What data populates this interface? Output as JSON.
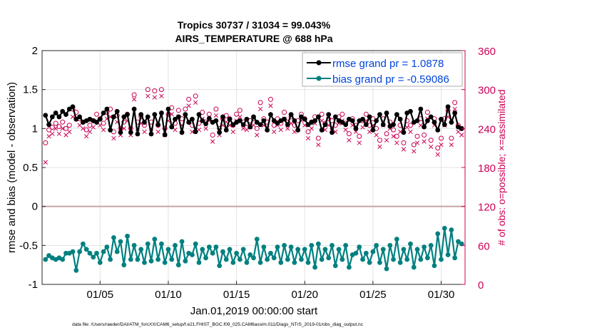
{
  "chart_data": {
    "type": "line",
    "title": "Tropics 30737 / 31034 = 99.043%",
    "subtitle": "AIRS_TEMPERATURE @ 688 hPa",
    "xlabel": "Jan.01,2019 00:00:00 start",
    "ylabel": "rmse and bias (model - observation)",
    "ylabel_right": "# of obs: o=possible; ×=assimilated",
    "footer": "data file: /Users/raeder/DAI/ATM_forcXX/CAM6_setup/f.e21.FHIST_BGC.f09_025.CAM6assim.011/Diags_NTrS_2019-01/obs_diag_output.nc",
    "xlim": [
      0.75,
      31.75
    ],
    "ylim": [
      -1,
      2
    ],
    "ylim_right": [
      0,
      360
    ],
    "x_ticks": [
      5,
      10,
      15,
      20,
      25,
      30
    ],
    "x_tick_labels": [
      "01/05",
      "01/10",
      "01/15",
      "01/20",
      "01/25",
      "01/30"
    ],
    "y_ticks": [
      -1,
      -0.5,
      0,
      0.5,
      1,
      1.5,
      2
    ],
    "y_tick_labels": [
      "-1",
      "-0.5",
      "0",
      "0.5",
      "1",
      "1.5",
      "2"
    ],
    "y_right_ticks": [
      0,
      60,
      120,
      180,
      240,
      300,
      360
    ],
    "y_right_tick_labels": [
      "0",
      "60",
      "120",
      "180",
      "240",
      "300",
      "360"
    ],
    "grid": true,
    "legend_position": "top-right",
    "colors": {
      "rmse": "#000000",
      "bias": "#008080",
      "obs": "#cc0055",
      "zero_line": "#c8a4a4",
      "grid": "#e3e3e3",
      "legend_text": "#0044dd"
    },
    "x": [
      1.0,
      1.25,
      1.5,
      1.75,
      2.0,
      2.25,
      2.5,
      2.75,
      3.0,
      3.25,
      3.5,
      3.75,
      4.0,
      4.25,
      4.5,
      4.75,
      5.0,
      5.25,
      5.5,
      5.75,
      6.0,
      6.25,
      6.5,
      6.75,
      7.0,
      7.25,
      7.5,
      7.75,
      8.0,
      8.25,
      8.5,
      8.75,
      9.0,
      9.25,
      9.5,
      9.75,
      10.0,
      10.25,
      10.5,
      10.75,
      11.0,
      11.25,
      11.5,
      11.75,
      12.0,
      12.25,
      12.5,
      12.75,
      13.0,
      13.25,
      13.5,
      13.75,
      14.0,
      14.25,
      14.5,
      14.75,
      15.0,
      15.25,
      15.5,
      15.75,
      16.0,
      16.25,
      16.5,
      16.75,
      17.0,
      17.25,
      17.5,
      17.75,
      18.0,
      18.25,
      18.5,
      18.75,
      19.0,
      19.25,
      19.5,
      19.75,
      20.0,
      20.25,
      20.5,
      20.75,
      21.0,
      21.25,
      21.5,
      21.75,
      22.0,
      22.25,
      22.5,
      22.75,
      23.0,
      23.25,
      23.5,
      23.75,
      24.0,
      24.25,
      24.5,
      24.75,
      25.0,
      25.25,
      25.5,
      25.75,
      26.0,
      26.25,
      26.5,
      26.75,
      27.0,
      27.25,
      27.5,
      27.75,
      28.0,
      28.25,
      28.5,
      28.75,
      29.0,
      29.25,
      29.5,
      29.75,
      30.0,
      30.25,
      30.5,
      30.75,
      31.0,
      31.25,
      31.5
    ],
    "series": [
      {
        "name": "rmse grand pr = 1.0878",
        "values": [
          1.17,
          1.05,
          1.15,
          1.2,
          1.15,
          1.22,
          1.18,
          1.25,
          1.28,
          1.12,
          1.15,
          1.08,
          1.1,
          1.12,
          1.1,
          1.08,
          1.12,
          1.2,
          1.25,
          0.98,
          1.15,
          1.22,
          0.95,
          1.15,
          1.18,
          0.95,
          1.25,
          0.93,
          1.18,
          1.08,
          1.15,
          0.93,
          1.18,
          1.05,
          1.2,
          0.92,
          1.25,
          1.02,
          1.12,
          1.15,
          0.95,
          1.18,
          1.08,
          1.12,
          0.96,
          1.18,
          1.1,
          1.06,
          1.13,
          1.08,
          1.1,
          0.95,
          1.15,
          0.98,
          1.12,
          1.05,
          1.08,
          1.1,
          1.05,
          1.12,
          1.02,
          1.15,
          1.08,
          1.05,
          1.1,
          0.98,
          1.18,
          1.1,
          1.07,
          1.1,
          1.12,
          1.05,
          1.18,
          1.1,
          0.98,
          1.15,
          1.12,
          1.05,
          1.08,
          1.1,
          1.15,
          0.98,
          1.05,
          1.18,
          0.95,
          1.15,
          1.1,
          1.08,
          1.05,
          1.12,
          1.1,
          1.0,
          1.1,
          1.12,
          1.05,
          1.15,
          0.98,
          1.1,
          1.18,
          1.05,
          1.2,
          1.03,
          1.05,
          1.18,
          1.12,
          0.95,
          1.2,
          1.22,
          1.08,
          1.1,
          1.25,
          1.02,
          1.1,
          1.15,
          1.08,
          0.98,
          1.12,
          1.05,
          1.28,
          1.08,
          1.2,
          1.02,
          1.0
        ]
      },
      {
        "name": "bias grand pr = -0.59086",
        "values": [
          -0.68,
          -0.63,
          -0.66,
          -0.68,
          -0.66,
          -0.68,
          -0.6,
          -0.6,
          -0.58,
          -0.82,
          -0.58,
          -0.48,
          -0.55,
          -0.6,
          -0.65,
          -0.6,
          -0.72,
          -0.58,
          -0.52,
          -0.68,
          -0.4,
          -0.58,
          -0.45,
          -0.75,
          -0.38,
          -0.68,
          -0.5,
          -0.68,
          -0.55,
          -0.72,
          -0.48,
          -0.7,
          -0.42,
          -0.68,
          -0.48,
          -0.72,
          -0.55,
          -0.68,
          -0.5,
          -0.75,
          -0.45,
          -0.7,
          -0.6,
          -0.62,
          -0.48,
          -0.72,
          -0.55,
          -0.66,
          -0.52,
          -0.6,
          -0.52,
          -0.76,
          -0.58,
          -0.68,
          -0.55,
          -0.72,
          -0.6,
          -0.68,
          -0.55,
          -0.72,
          -0.62,
          -0.66,
          -0.42,
          -0.72,
          -0.52,
          -0.68,
          -0.6,
          -0.66,
          -0.52,
          -0.72,
          -0.5,
          -0.68,
          -0.52,
          -0.72,
          -0.55,
          -0.68,
          -0.55,
          -0.72,
          -0.5,
          -0.78,
          -0.48,
          -0.68,
          -0.55,
          -0.66,
          -0.5,
          -0.76,
          -0.55,
          -0.68,
          -0.5,
          -0.78,
          -0.62,
          -0.6,
          -0.52,
          -0.68,
          -0.6,
          -0.72,
          -0.58,
          -0.5,
          -0.72,
          -0.55,
          -0.8,
          -0.5,
          -0.68,
          -0.42,
          -0.72,
          -0.55,
          -0.68,
          -0.48,
          -0.78,
          -0.55,
          -0.68,
          -0.52,
          -0.66,
          -0.5,
          -0.76,
          -0.35,
          -0.68,
          -0.28,
          -0.62,
          -0.3,
          -0.66,
          -0.45,
          -0.48
        ]
      }
    ],
    "obs_possible": [
      218,
      238,
      242,
      248,
      243,
      250,
      240,
      245,
      270,
      265,
      255,
      250,
      238,
      245,
      252,
      262,
      255,
      248,
      265,
      270,
      235,
      260,
      240,
      250,
      262,
      240,
      292,
      250,
      258,
      245,
      300,
      250,
      298,
      245,
      300,
      240,
      262,
      272,
      248,
      268,
      255,
      270,
      285,
      245,
      290,
      248,
      265,
      250,
      262,
      230,
      270,
      240,
      255,
      260,
      255,
      245,
      262,
      268,
      250,
      248,
      252,
      255,
      240,
      280,
      255,
      250,
      285,
      245,
      255,
      248,
      265,
      250,
      258,
      245,
      252,
      262,
      255,
      235,
      250,
      258,
      225,
      262,
      248,
      255,
      252,
      245,
      258,
      262,
      248,
      232,
      255,
      245,
      228,
      252,
      262,
      245,
      255,
      240,
      222,
      255,
      232,
      250,
      238,
      228,
      245,
      218,
      252,
      245,
      215,
      228,
      255,
      230,
      265,
      222,
      255,
      210,
      225,
      255,
      268,
      225,
      280,
      245,
      240
    ],
    "obs_assimilated": [
      188,
      228,
      232,
      240,
      232,
      240,
      230,
      235,
      258,
      255,
      245,
      240,
      228,
      235,
      242,
      252,
      245,
      238,
      255,
      258,
      225,
      250,
      230,
      240,
      252,
      230,
      285,
      240,
      248,
      235,
      290,
      240,
      288,
      235,
      290,
      230,
      252,
      262,
      238,
      258,
      245,
      260,
      275,
      235,
      280,
      238,
      255,
      240,
      252,
      220,
      260,
      230,
      245,
      250,
      245,
      235,
      252,
      258,
      240,
      238,
      242,
      245,
      230,
      270,
      245,
      240,
      275,
      235,
      245,
      238,
      255,
      240,
      248,
      235,
      242,
      252,
      245,
      225,
      240,
      248,
      215,
      252,
      238,
      245,
      242,
      235,
      248,
      252,
      238,
      222,
      245,
      235,
      218,
      242,
      252,
      235,
      245,
      230,
      212,
      245,
      222,
      240,
      228,
      218,
      235,
      208,
      242,
      235,
      205,
      218,
      245,
      220,
      255,
      212,
      245,
      200,
      215,
      245,
      258,
      215,
      270,
      235,
      230
    ]
  }
}
